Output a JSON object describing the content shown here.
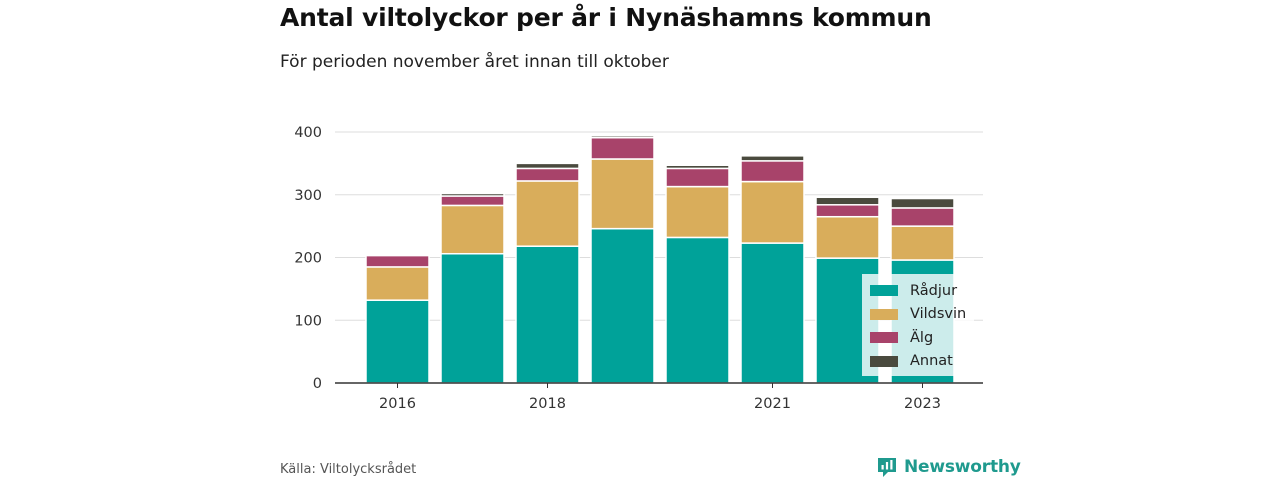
{
  "title": "Antal viltolyckor per år i Nynäshamns kommun",
  "subtitle": "För perioden november året innan till oktober",
  "source": "Källa: Viltolycksrådet",
  "brand": "Newsworthy",
  "colors": {
    "Rådjur": "#00a299",
    "Vildsvin": "#d9ad5b",
    "Älg": "#a8436a",
    "Annat": "#4a4a3e",
    "grid": "#dddddd",
    "axis": "#333333",
    "brand": "#1f9a8e"
  },
  "chart_data": {
    "type": "bar",
    "stacked": true,
    "categories": [
      "2016",
      "2017",
      "2018",
      "2019",
      "2020",
      "2021",
      "2022",
      "2023"
    ],
    "xtick_labels": [
      "2016",
      "",
      "2018",
      "",
      "",
      "2021",
      "",
      "2023"
    ],
    "series": [
      {
        "name": "Rådjur",
        "values": [
          132,
          206,
          218,
          246,
          232,
          223,
          199,
          196
        ]
      },
      {
        "name": "Vildsvin",
        "values": [
          53,
          77,
          104,
          111,
          81,
          98,
          66,
          54
        ]
      },
      {
        "name": "Älg",
        "values": [
          18,
          15,
          20,
          34,
          29,
          33,
          19,
          29
        ]
      },
      {
        "name": "Annat",
        "values": [
          0,
          4,
          8,
          3,
          5,
          8,
          12,
          15
        ]
      }
    ],
    "ylim": [
      0,
      400
    ],
    "yticks": [
      0,
      100,
      200,
      300,
      400
    ],
    "grid": true,
    "legend_position": "bottom-right"
  }
}
